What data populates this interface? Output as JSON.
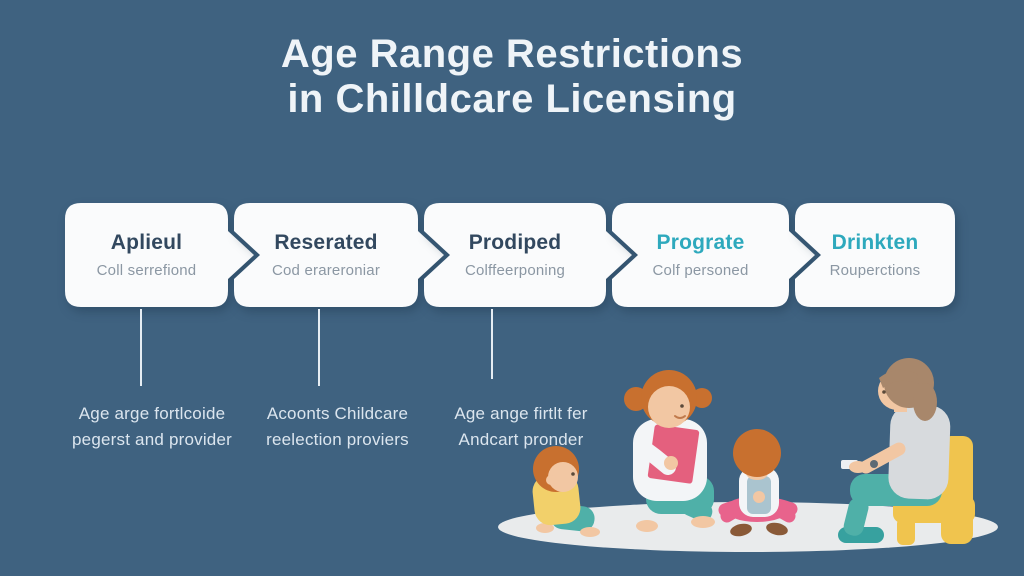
{
  "title": {
    "line1": "Age Range Restrictions",
    "line2": "in Chilldcare Licensing"
  },
  "steps": [
    {
      "title": "Aplieul",
      "subtitle": "Coll serrefiond",
      "accent": "navy"
    },
    {
      "title": "Reserated",
      "subtitle": "Cod erareroniar",
      "accent": "navy"
    },
    {
      "title": "Prodiped",
      "subtitle": "Colffeerponing",
      "accent": "navy"
    },
    {
      "title": "Prograte",
      "subtitle": "Colf personed",
      "accent": "teal"
    },
    {
      "title": "Drinkten",
      "subtitle": "Rouperctions",
      "accent": "teal"
    }
  ],
  "captions": [
    {
      "line1": "Age arge fortlcoide",
      "line2": "pegerst and provider"
    },
    {
      "line1": "Acoonts Childcare",
      "line2": "reelection proviers"
    },
    {
      "line1": "Age ange firtlt fer",
      "line2": "Andcart pronder"
    }
  ],
  "illustration": {
    "description": "Caregiver with pink book sitting on a rug with a baby and a toddler, and a parent seated on a yellow chair"
  },
  "colors": {
    "background": "#3f6280",
    "box_fill": "#fafbfc",
    "heading_navy": "#32485f",
    "heading_teal": "#2ea9bd",
    "subtitle_gray": "#8b97a3",
    "caption": "#dbe5ee",
    "line": "#e6edf3",
    "rug": "#e9ebec",
    "skin": "#f2c7a3",
    "hair_orange": "#c8702f",
    "hair_brown": "#a8876b",
    "shirt_yellow": "#f2d06a",
    "pants_teal": "#4fb0a8",
    "book_pink": "#e4607e",
    "pants_pink": "#e8638c",
    "overalls_blue": "#aac4cf",
    "shirt_gray": "#d7dadd",
    "chair_yellow": "#f0c44e",
    "shoe_teal": "#37a19f",
    "shoe_brown": "#8a5a38",
    "title_white": "#eff4f8"
  }
}
